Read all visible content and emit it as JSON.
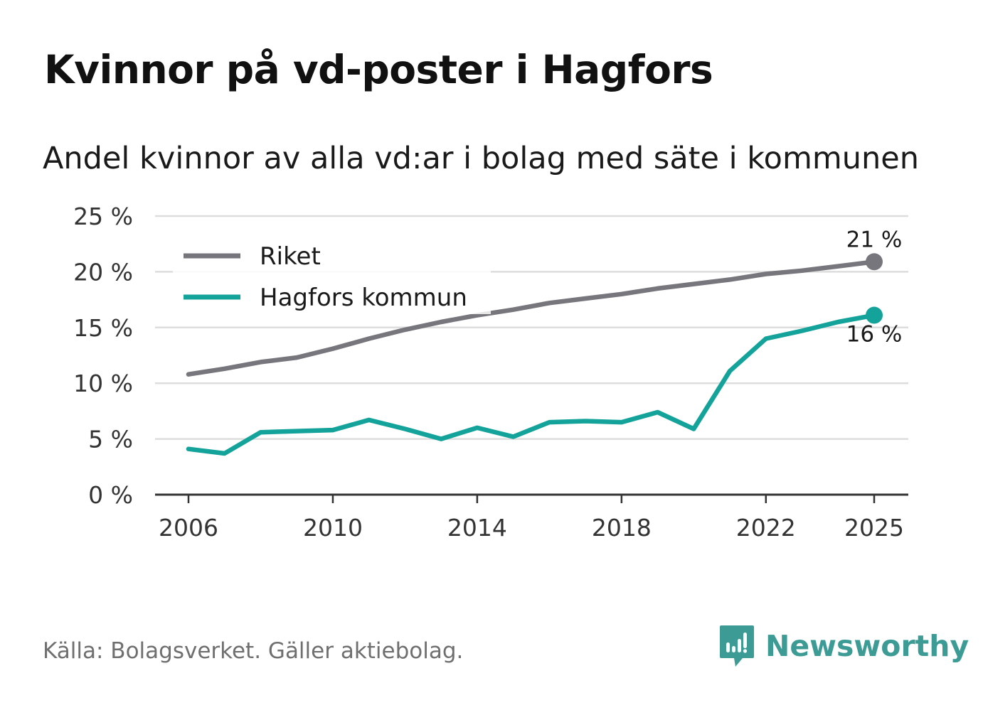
{
  "header": {
    "title": "Kvinnor på vd-poster i Hagfors",
    "subtitle": "Andel kvinnor av alla vd:ar i bolag med säte i kommunen"
  },
  "footer": {
    "source": "Källa: Bolagsverket. Gäller aktiebolag.",
    "brand": "Newsworthy"
  },
  "colors": {
    "riket": "#77767c",
    "kommun": "#14a39a",
    "grid": "#dddddd",
    "axis": "#333333",
    "brand": "#3d9b96"
  },
  "chart_data": {
    "type": "line",
    "title": "Kvinnor på vd-poster i Hagfors",
    "subtitle": "Andel kvinnor av alla vd:ar i bolag med säte i kommunen",
    "x": [
      2006,
      2007,
      2008,
      2009,
      2010,
      2011,
      2012,
      2013,
      2014,
      2015,
      2016,
      2017,
      2018,
      2019,
      2020,
      2021,
      2022,
      2023,
      2024,
      2025
    ],
    "series": [
      {
        "name": "Riket",
        "color": "#77767c",
        "values": [
          10.8,
          11.3,
          11.9,
          12.3,
          13.1,
          14.0,
          14.8,
          15.5,
          16.1,
          16.6,
          17.2,
          17.6,
          18.0,
          18.5,
          18.9,
          19.3,
          19.8,
          20.1,
          20.5,
          20.9
        ],
        "end_label": "21 %"
      },
      {
        "name": "Hagfors kommun",
        "color": "#14a39a",
        "values": [
          4.1,
          3.7,
          5.6,
          5.7,
          5.8,
          6.7,
          5.9,
          5.0,
          6.0,
          5.2,
          6.5,
          6.6,
          6.5,
          7.4,
          5.9,
          11.1,
          14.0,
          14.7,
          15.5,
          16.1
        ],
        "end_label": "16 %"
      }
    ],
    "xticks": [
      2006,
      2010,
      2014,
      2018,
      2022,
      2025
    ],
    "xtick_labels": [
      "2006",
      "2010",
      "2014",
      "2018",
      "2022",
      "2025"
    ],
    "yticks": [
      0,
      5,
      10,
      15,
      20,
      25
    ],
    "ytick_labels": [
      "0 %",
      "5 %",
      "10 %",
      "15 %",
      "20 %",
      "25 %"
    ],
    "ylim": [
      0,
      25
    ],
    "xlim": [
      2006,
      2025
    ],
    "xlabel": "",
    "ylabel": "",
    "grid": true,
    "legend_position": "top-left"
  }
}
